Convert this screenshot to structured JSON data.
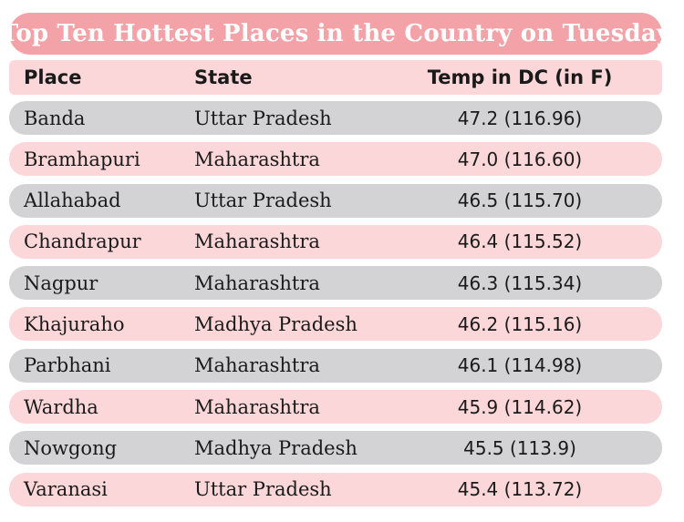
{
  "title": "Top Ten Hottest Places in the Country on Tuesday",
  "colors": {
    "title_bg": "#f3a3a8",
    "title_text": "#ffffff",
    "row_pink": "#fbd7d9",
    "row_gray": "#d3d3d5",
    "text": "#1a1a1a"
  },
  "chart_data": {
    "type": "table",
    "title": "Top Ten Hottest Places in the Country on Tuesday",
    "columns": [
      "Place",
      "State",
      "Temp in DC (in F)"
    ],
    "rows": [
      {
        "place": "Banda",
        "state": "Uttar Pradesh",
        "temp": "47.2 (116.96)"
      },
      {
        "place": "Bramhapuri",
        "state": "Maharashtra",
        "temp": "47.0 (116.60)"
      },
      {
        "place": "Allahabad",
        "state": "Uttar Pradesh",
        "temp": "46.5 (115.70)"
      },
      {
        "place": "Chandrapur",
        "state": "Maharashtra",
        "temp": "46.4 (115.52)"
      },
      {
        "place": "Nagpur",
        "state": "Maharashtra",
        "temp": "46.3 (115.34)"
      },
      {
        "place": "Khajuraho",
        "state": "Madhya Pradesh",
        "temp": "46.2 (115.16)"
      },
      {
        "place": "Parbhani",
        "state": "Maharashtra",
        "temp": "46.1 (114.98)"
      },
      {
        "place": "Wardha",
        "state": "Maharashtra",
        "temp": "45.9 (114.62)"
      },
      {
        "place": "Nowgong",
        "state": "Madhya Pradesh",
        "temp": "45.5 (113.9)"
      },
      {
        "place": "Varanasi",
        "state": "Uttar Pradesh",
        "temp": "45.4 (113.72)"
      }
    ]
  }
}
